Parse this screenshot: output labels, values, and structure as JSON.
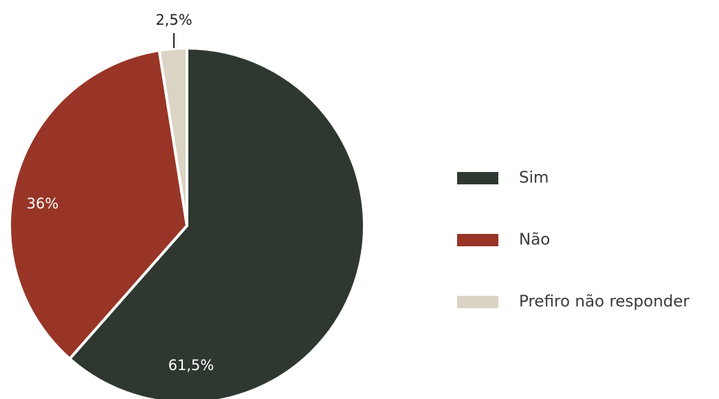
{
  "chart_data": {
    "type": "pie",
    "categories": [
      "Sim",
      "Não",
      "Prefiro não responder"
    ],
    "values": [
      61.5,
      36,
      2.5
    ],
    "value_labels": [
      "61,5%",
      "36%",
      "2,5%"
    ],
    "colors": [
      "#2f3830",
      "#983526",
      "#dbd4c4"
    ],
    "legend": "right"
  }
}
